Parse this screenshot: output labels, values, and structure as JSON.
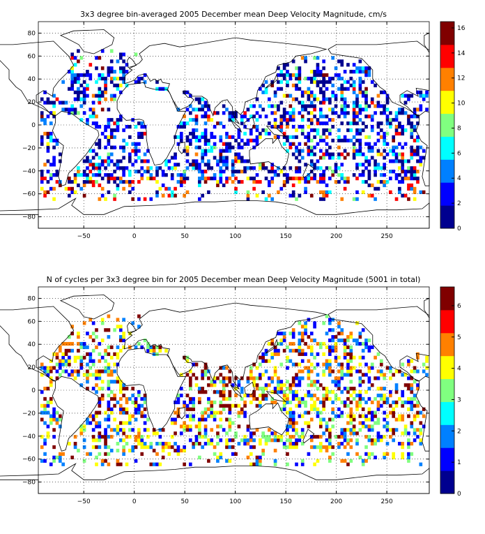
{
  "colormap": [
    "#00008f",
    "#0000ff",
    "#0080ff",
    "#00ffff",
    "#80ff80",
    "#ffff00",
    "#ff8000",
    "#ff0000",
    "#800000"
  ],
  "chart_data": [
    {
      "type": "heatmap",
      "title": "3x3 degree bin-averaged 2005 December mean Deep Velocity Magnitude, cm/s",
      "xlabel": "",
      "ylabel": "",
      "xlim": [
        -95,
        292
      ],
      "ylim": [
        -90,
        90
      ],
      "xticks": [
        -50,
        0,
        50,
        100,
        150,
        200,
        250
      ],
      "yticks": [
        -80,
        -60,
        -40,
        -20,
        0,
        20,
        40,
        60,
        80
      ],
      "xtick_labels": [
        "−50",
        "0",
        "50",
        "100",
        "150",
        "200",
        "250"
      ],
      "ytick_labels": [
        "−80",
        "−60",
        "−40",
        "−20",
        "0",
        "20",
        "40",
        "60",
        "80"
      ],
      "grid": "dotted",
      "bin_size_deg": 3,
      "colorbar": {
        "range": [
          0,
          16.5
        ],
        "ticks": [
          0,
          2,
          4,
          6,
          8,
          10,
          12,
          14,
          16
        ],
        "tick_labels": [
          "0",
          "2",
          "4",
          "6",
          "8",
          "10",
          "12",
          "14",
          "16"
        ]
      },
      "seed": 7,
      "sample_pattern": "low values over open ocean, sparse high values along Southern Ocean and equator"
    },
    {
      "type": "heatmap",
      "title": "N of cycles per 3x3 degree bin for 2005 December mean Deep Velocity Magnitude (5001 in total)",
      "xlabel": "",
      "ylabel": "",
      "xlim": [
        -95,
        292
      ],
      "ylim": [
        -90,
        90
      ],
      "xticks": [
        -50,
        0,
        50,
        100,
        150,
        200,
        250
      ],
      "yticks": [
        -80,
        -60,
        -40,
        -20,
        0,
        20,
        40,
        60,
        80
      ],
      "xtick_labels": [
        "−50",
        "0",
        "50",
        "100",
        "150",
        "200",
        "250"
      ],
      "ytick_labels": [
        "−80",
        "−60",
        "−40",
        "−20",
        "0",
        "20",
        "40",
        "60",
        "80"
      ],
      "grid": "dotted",
      "bin_size_deg": 3,
      "colorbar": {
        "range": [
          0,
          6.6
        ],
        "ticks": [
          0,
          1,
          2,
          3,
          4,
          5,
          6
        ],
        "tick_labels": [
          "0",
          "1",
          "2",
          "3",
          "4",
          "5",
          "6"
        ]
      },
      "seed": 13,
      "sample_pattern": "counts 1-6 per bin, higher counts in northwest Indian Ocean"
    }
  ]
}
